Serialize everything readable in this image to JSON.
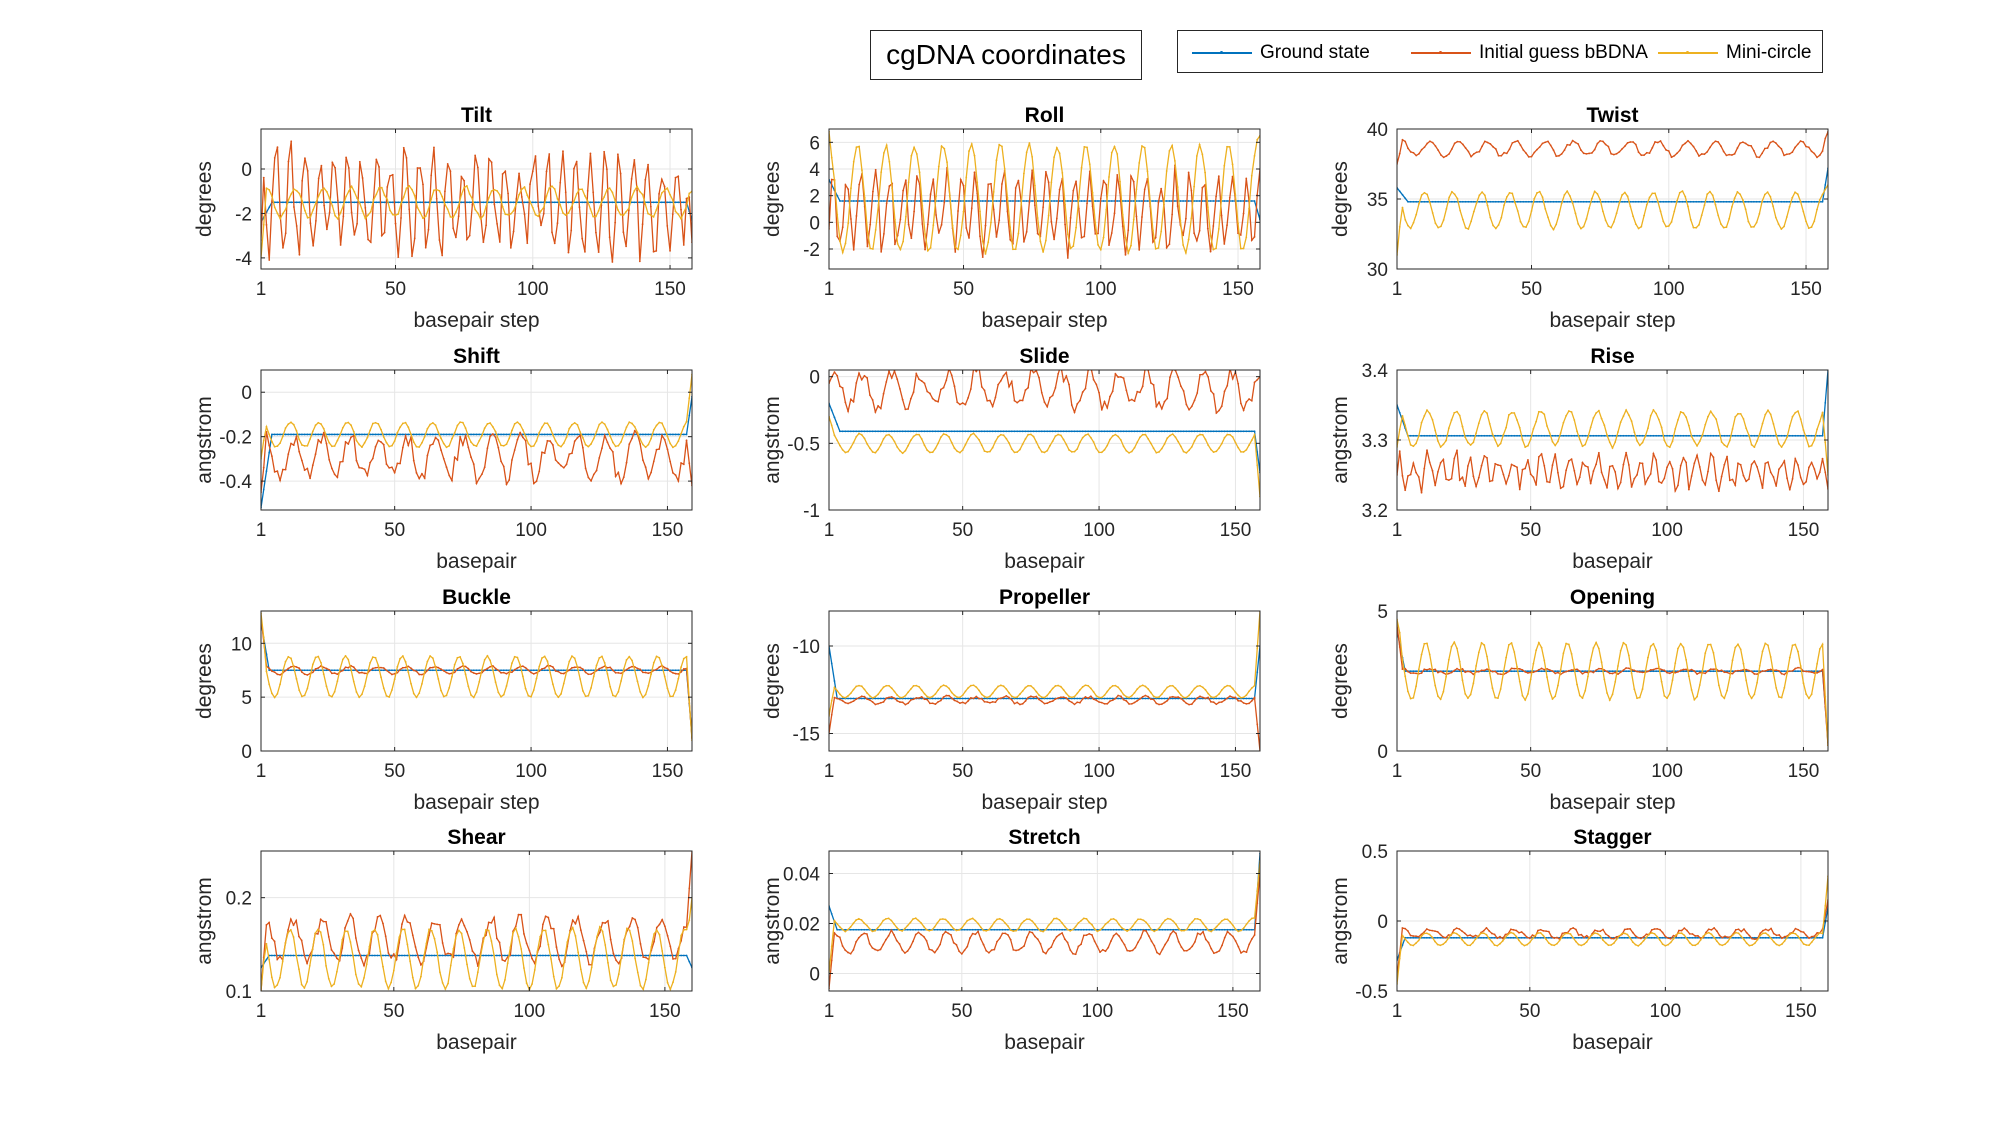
{
  "figure": {
    "title": "cgDNA coordinates"
  },
  "legend": [
    {
      "label": "Ground state",
      "color": "#0072BD"
    },
    {
      "label": "Initial guess bBDNA",
      "color": "#D95319"
    },
    {
      "label": "Mini-circle",
      "color": "#EDB120"
    }
  ],
  "chart_data": [
    {
      "type": "line",
      "title": "Tilt",
      "xlabel": "basepair step",
      "ylabel": "degrees",
      "xlim": [
        1,
        158
      ],
      "ylim": [
        -4.5,
        1.8
      ],
      "xticks": [
        1,
        50,
        100,
        150
      ],
      "yticks": [
        -4,
        -2,
        0
      ],
      "grid": true,
      "x_range": [
        1,
        158
      ],
      "series": [
        {
          "name": "Ground state",
          "edge_start": -2.4,
          "base": -1.5,
          "amp": 0,
          "period": 10.4,
          "phase": 0,
          "jitter": 0,
          "edge_end": -2.3,
          "transition": 4
        },
        {
          "name": "Initial guess bBDNA",
          "edge_start": -3.2,
          "base": -1.5,
          "amp": 1.9,
          "period": 5.2,
          "phase": 1.0,
          "jitter": 0.9,
          "edge_end": -3.3,
          "transition": 1
        },
        {
          "name": "Mini-circle",
          "edge_start": -4.0,
          "base": -1.5,
          "amp": 0.65,
          "period": 10.4,
          "phase": 0.4,
          "jitter": 0.1,
          "edge_end": -1.0,
          "transition": 2
        }
      ]
    },
    {
      "type": "line",
      "title": "Roll",
      "xlabel": "basepair step",
      "ylabel": "degrees",
      "xlim": [
        1,
        158
      ],
      "ylim": [
        -3.5,
        7
      ],
      "xticks": [
        1,
        50,
        100,
        150
      ],
      "yticks": [
        -2,
        0,
        2,
        4,
        6
      ],
      "grid": true,
      "x_range": [
        1,
        158
      ],
      "series": [
        {
          "name": "Ground state",
          "edge_start": 3.2,
          "base": 1.6,
          "amp": 0,
          "period": 10.4,
          "phase": 0,
          "jitter": 0,
          "edge_end": 0.2,
          "transition": 4
        },
        {
          "name": "Initial guess bBDNA",
          "edge_start": -0.5,
          "base": 0.8,
          "amp": 2.6,
          "period": 5.2,
          "phase": 0,
          "jitter": 0.9,
          "edge_end": 4.0,
          "transition": 1
        },
        {
          "name": "Mini-circle",
          "edge_start": 6.8,
          "base": 1.8,
          "amp": 4.0,
          "period": 10.4,
          "phase": 1.6,
          "jitter": 0.2,
          "edge_end": 6.5,
          "transition": 1
        }
      ]
    },
    {
      "type": "line",
      "title": "Twist",
      "xlabel": "basepair step",
      "ylabel": "degrees",
      "xlim": [
        1,
        158
      ],
      "ylim": [
        30,
        40
      ],
      "xticks": [
        1,
        50,
        100,
        150
      ],
      "yticks": [
        30,
        35,
        40
      ],
      "grid": true,
      "x_range": [
        1,
        158
      ],
      "series": [
        {
          "name": "Ground state",
          "edge_start": 35.8,
          "base": 34.8,
          "amp": 0,
          "period": 10.4,
          "phase": 0,
          "jitter": 0,
          "edge_end": 37.2,
          "transition": 4
        },
        {
          "name": "Initial guess bBDNA",
          "edge_start": 37.5,
          "base": 38.6,
          "amp": 0.5,
          "period": 10.4,
          "phase": 0.5,
          "jitter": 0.15,
          "edge_end": 39.8,
          "transition": 2
        },
        {
          "name": "Mini-circle",
          "edge_start": 31.0,
          "base": 34.2,
          "amp": 1.3,
          "period": 10.4,
          "phase": 1.8,
          "jitter": 0.1,
          "edge_end": 36.0,
          "transition": 2
        }
      ]
    },
    {
      "type": "line",
      "title": "Shift",
      "xlabel": "basepair",
      "ylabel": "angstrom",
      "xlim": [
        1,
        159
      ],
      "ylim": [
        -0.53,
        0.1
      ],
      "xticks": [
        1,
        50,
        100,
        150
      ],
      "yticks": [
        -0.4,
        -0.2,
        0
      ],
      "grid": true,
      "x_range": [
        1,
        159
      ],
      "series": [
        {
          "name": "Ground state",
          "edge_start": -0.52,
          "base": -0.19,
          "amp": 0,
          "period": 10.4,
          "phase": 0,
          "jitter": 0,
          "edge_end": -0.02,
          "transition": 4
        },
        {
          "name": "Initial guess bBDNA",
          "edge_start": -0.45,
          "base": -0.29,
          "amp": 0.09,
          "period": 10.4,
          "phase": 0.6,
          "jitter": 0.04,
          "edge_end": -0.42,
          "transition": 2
        },
        {
          "name": "Mini-circle",
          "edge_start": -0.3,
          "base": -0.19,
          "amp": 0.055,
          "period": 10.4,
          "phase": 1.3,
          "jitter": 0.005,
          "edge_end": 0.08,
          "transition": 2
        }
      ]
    },
    {
      "type": "line",
      "title": "Slide",
      "xlabel": "basepair",
      "ylabel": "angstrom",
      "xlim": [
        1,
        159
      ],
      "ylim": [
        -1,
        0.05
      ],
      "xticks": [
        1,
        50,
        100,
        150
      ],
      "yticks": [
        -1,
        -0.5,
        0
      ],
      "grid": true,
      "x_range": [
        1,
        159
      ],
      "series": [
        {
          "name": "Ground state",
          "edge_start": -0.2,
          "base": -0.41,
          "amp": 0,
          "period": 10.4,
          "phase": 0,
          "jitter": 0,
          "edge_end": -0.72,
          "transition": 4
        },
        {
          "name": "Initial guess bBDNA",
          "edge_start": -0.05,
          "base": -0.1,
          "amp": 0.13,
          "period": 10.4,
          "phase": 0.3,
          "jitter": 0.06,
          "edge_end": 0.0,
          "transition": 1
        },
        {
          "name": "Mini-circle",
          "edge_start": -0.3,
          "base": -0.5,
          "amp": 0.07,
          "period": 10.4,
          "phase": 1.0,
          "jitter": 0.005,
          "edge_end": -0.9,
          "transition": 2
        }
      ]
    },
    {
      "type": "line",
      "title": "Rise",
      "xlabel": "basepair",
      "ylabel": "angstrom",
      "xlim": [
        1,
        159
      ],
      "ylim": [
        3.2,
        3.4
      ],
      "xticks": [
        1,
        50,
        100,
        150
      ],
      "yticks": [
        3.2,
        3.3,
        3.4
      ],
      "grid": true,
      "x_range": [
        1,
        159
      ],
      "series": [
        {
          "name": "Ground state",
          "edge_start": 3.35,
          "base": 3.306,
          "amp": 0,
          "period": 10.4,
          "phase": 0,
          "jitter": 0,
          "edge_end": 3.4,
          "transition": 4
        },
        {
          "name": "Initial guess bBDNA",
          "edge_start": 3.25,
          "base": 3.255,
          "amp": 0.02,
          "period": 5.2,
          "phase": 0.5,
          "jitter": 0.012,
          "edge_end": 3.23,
          "transition": 1
        },
        {
          "name": "Mini-circle",
          "edge_start": 3.29,
          "base": 3.316,
          "amp": 0.025,
          "period": 10.4,
          "phase": 1.1,
          "jitter": 0.003,
          "edge_end": 3.25,
          "transition": 2
        }
      ]
    },
    {
      "type": "line",
      "title": "Buckle",
      "xlabel": "basepair step",
      "ylabel": "degrees",
      "xlim": [
        1,
        159
      ],
      "ylim": [
        0,
        13
      ],
      "xticks": [
        1,
        50,
        100,
        150
      ],
      "yticks": [
        0,
        5,
        10
      ],
      "grid": true,
      "x_range": [
        1,
        159
      ],
      "series": [
        {
          "name": "Ground state",
          "edge_start": 12.0,
          "base": 7.5,
          "amp": 0,
          "period": 10.4,
          "phase": 0,
          "jitter": 0,
          "edge_end": 1.3,
          "transition": 3
        },
        {
          "name": "Initial guess bBDNA",
          "edge_start": 12.5,
          "base": 7.5,
          "amp": 0.35,
          "period": 10.4,
          "phase": 0.7,
          "jitter": 0.1,
          "edge_end": 1.2,
          "transition": 2
        },
        {
          "name": "Mini-circle",
          "edge_start": 12.8,
          "base": 6.9,
          "amp": 1.9,
          "period": 10.4,
          "phase": 1.7,
          "jitter": 0.05,
          "edge_end": 1.0,
          "transition": 2
        }
      ]
    },
    {
      "type": "line",
      "title": "Propeller",
      "xlabel": "basepair step",
      "ylabel": "degrees",
      "xlim": [
        1,
        159
      ],
      "ylim": [
        -16,
        -8
      ],
      "xticks": [
        1,
        50,
        100,
        150
      ],
      "yticks": [
        -15,
        -10
      ],
      "grid": true,
      "x_range": [
        1,
        159
      ],
      "series": [
        {
          "name": "Ground state",
          "edge_start": -10.0,
          "base": -13.0,
          "amp": 0,
          "period": 10.4,
          "phase": 0,
          "jitter": 0,
          "edge_end": -10.0,
          "transition": 3
        },
        {
          "name": "Initial guess bBDNA",
          "edge_start": -15.0,
          "base": -13.1,
          "amp": 0.2,
          "period": 10.4,
          "phase": 0.4,
          "jitter": 0.08,
          "edge_end": -16.0,
          "transition": 2
        },
        {
          "name": "Mini-circle",
          "edge_start": -14.0,
          "base": -12.6,
          "amp": 0.35,
          "period": 10.4,
          "phase": 1.2,
          "jitter": 0.02,
          "edge_end": -8.0,
          "transition": 2
        }
      ]
    },
    {
      "type": "line",
      "title": "Opening",
      "xlabel": "basepair step",
      "ylabel": "degrees",
      "xlim": [
        1,
        159
      ],
      "ylim": [
        0,
        5
      ],
      "xticks": [
        1,
        50,
        100,
        150
      ],
      "yticks": [
        0,
        5
      ],
      "grid": true,
      "x_range": [
        1,
        159
      ],
      "series": [
        {
          "name": "Ground state",
          "edge_start": 4.3,
          "base": 2.85,
          "amp": 0,
          "period": 10.4,
          "phase": 0,
          "jitter": 0,
          "edge_end": 0.3,
          "transition": 3
        },
        {
          "name": "Initial guess bBDNA",
          "edge_start": 4.5,
          "base": 2.85,
          "amp": 0.08,
          "period": 10.4,
          "phase": 0.5,
          "jitter": 0.05,
          "edge_end": 0.2,
          "transition": 2
        },
        {
          "name": "Mini-circle",
          "edge_start": 4.7,
          "base": 2.85,
          "amp": 1.0,
          "period": 10.4,
          "phase": 1.5,
          "jitter": 0.04,
          "edge_end": 0.2,
          "transition": 2
        }
      ]
    },
    {
      "type": "line",
      "title": "Shear",
      "xlabel": "basepair",
      "ylabel": "angstrom",
      "xlim": [
        1,
        160
      ],
      "ylim": [
        0.1,
        0.25
      ],
      "xticks": [
        1,
        50,
        100,
        150
      ],
      "yticks": [
        0.1,
        0.2
      ],
      "grid": true,
      "x_range": [
        1,
        160
      ],
      "series": [
        {
          "name": "Ground state",
          "edge_start": 0.125,
          "base": 0.138,
          "amp": 0,
          "period": 10.4,
          "phase": 0,
          "jitter": 0,
          "edge_end": 0.125,
          "transition": 3
        },
        {
          "name": "Initial guess bBDNA",
          "edge_start": 0.1,
          "base": 0.155,
          "amp": 0.022,
          "period": 10.4,
          "phase": 0.5,
          "jitter": 0.007,
          "edge_end": 0.25,
          "transition": 2
        },
        {
          "name": "Mini-circle",
          "edge_start": 0.1,
          "base": 0.135,
          "amp": 0.032,
          "period": 10.4,
          "phase": 1.4,
          "jitter": 0.002,
          "edge_end": 0.2,
          "transition": 2
        }
      ]
    },
    {
      "type": "line",
      "title": "Stretch",
      "xlabel": "basepair",
      "ylabel": "angstrom",
      "xlim": [
        1,
        160
      ],
      "ylim": [
        -0.007,
        0.049
      ],
      "xticks": [
        1,
        50,
        100,
        150
      ],
      "yticks": [
        0,
        0.02,
        0.04
      ],
      "grid": true,
      "x_range": [
        1,
        160
      ],
      "series": [
        {
          "name": "Ground state",
          "edge_start": 0.027,
          "base": 0.0175,
          "amp": 0,
          "period": 10.4,
          "phase": 0,
          "jitter": 0,
          "edge_end": 0.048,
          "transition": 3
        },
        {
          "name": "Initial guess bBDNA",
          "edge_start": -0.006,
          "base": 0.0125,
          "amp": 0.004,
          "period": 10.4,
          "phase": 0.3,
          "jitter": 0.001,
          "edge_end": 0.04,
          "transition": 2
        },
        {
          "name": "Mini-circle",
          "edge_start": 0.0,
          "base": 0.0195,
          "amp": 0.0025,
          "period": 10.4,
          "phase": 1.2,
          "jitter": 0.0003,
          "edge_end": 0.045,
          "transition": 2
        }
      ]
    },
    {
      "type": "line",
      "title": "Stagger",
      "xlabel": "basepair",
      "ylabel": "angstrom",
      "xlim": [
        1,
        160
      ],
      "ylim": [
        -0.5,
        0.5
      ],
      "xticks": [
        1,
        50,
        100,
        150
      ],
      "yticks": [
        -0.5,
        0,
        0.5
      ],
      "grid": true,
      "x_range": [
        1,
        160
      ],
      "series": [
        {
          "name": "Ground state",
          "edge_start": -0.28,
          "base": -0.12,
          "amp": 0,
          "period": 10.4,
          "phase": 0,
          "jitter": 0,
          "edge_end": 0.1,
          "transition": 3
        },
        {
          "name": "Initial guess bBDNA",
          "edge_start": -0.4,
          "base": -0.09,
          "amp": 0.03,
          "period": 10.4,
          "phase": 0.4,
          "jitter": 0.015,
          "edge_end": 0.15,
          "transition": 2
        },
        {
          "name": "Mini-circle",
          "edge_start": -0.45,
          "base": -0.13,
          "amp": 0.045,
          "period": 10.4,
          "phase": 1.3,
          "jitter": 0.003,
          "edge_end": 0.32,
          "transition": 2
        }
      ]
    }
  ]
}
